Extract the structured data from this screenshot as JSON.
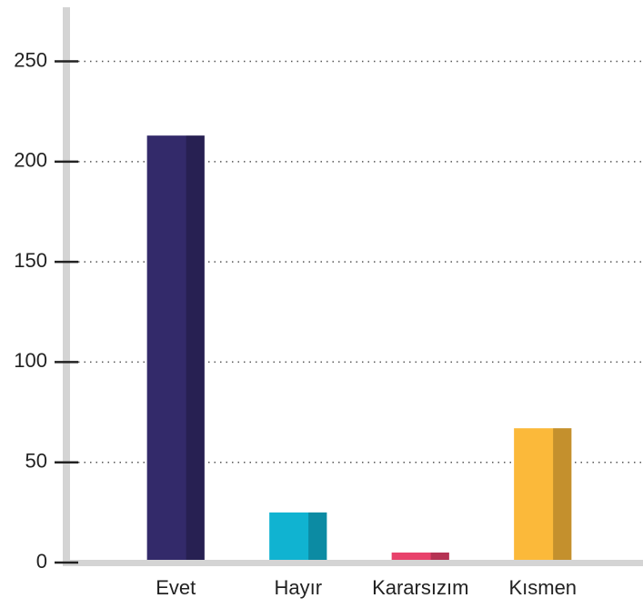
{
  "chart_data": {
    "type": "bar",
    "categories": [
      "Evet",
      "Hayır",
      "Kararsızım",
      "Kısmen"
    ],
    "values": [
      213,
      25,
      5,
      67
    ],
    "colors": [
      "#332a6a",
      "#10b3d1",
      "#e8426b",
      "#fbb93a"
    ],
    "ylim": [
      0,
      277
    ],
    "yticks": [
      0,
      50,
      100,
      150,
      200,
      250
    ],
    "grid": true
  }
}
